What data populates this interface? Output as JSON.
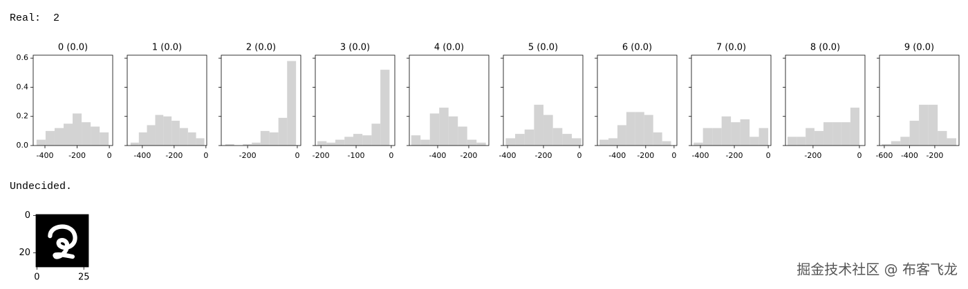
{
  "header": "Real:  2",
  "status": "Undecided.",
  "watermark": "掘金技术社区 @ 布客飞龙",
  "chart_data": [
    {
      "type": "histogram",
      "title": "0 (0.0)",
      "color": "#d3d3d3",
      "xlim": [
        -473,
        21
      ],
      "xticks": [
        -400,
        -200,
        0
      ],
      "ylim": [
        0,
        0.62
      ],
      "yticks": [
        {
          "value": 0,
          "label": "0.0"
        },
        0.2,
        0.4,
        0.6
      ],
      "bins": [
        -452,
        -396,
        -340,
        -284,
        -228,
        -172,
        -116,
        -60,
        -4
      ],
      "counts": [
        0.04,
        0.1,
        0.12,
        0.15,
        0.22,
        0.16,
        0.13,
        0.09
      ]
    },
    {
      "type": "histogram",
      "title": "1 (0.0)",
      "color": "#d3d3d3",
      "xlim": [
        -495,
        5
      ],
      "xticks": [
        -400,
        -200,
        0
      ],
      "ylim": [
        0,
        0.62
      ],
      "bins": [
        -474,
        -422,
        -371,
        -319,
        -268,
        -216,
        -165,
        -113,
        -62,
        -10
      ],
      "counts": [
        0.02,
        0.09,
        0.14,
        0.21,
        0.2,
        0.17,
        0.12,
        0.09,
        0.05
      ]
    },
    {
      "type": "histogram",
      "title": "2 (0.0)",
      "color": "#d3d3d3",
      "xlim": [
        -306,
        14
      ],
      "xticks": [
        -200,
        0
      ],
      "ylim": [
        0,
        0.62
      ],
      "bins": [
        -290,
        -254,
        -219,
        -183,
        -148,
        -112,
        -76,
        -41,
        -5
      ],
      "counts": [
        0.01,
        0,
        0.01,
        0.02,
        0.1,
        0.09,
        0.19,
        0.58
      ]
    },
    {
      "type": "histogram",
      "title": "3 (0.0)",
      "color": "#d3d3d3",
      "xlim": [
        -216,
        10
      ],
      "xticks": [
        -200,
        -100,
        0
      ],
      "ylim": [
        0,
        0.62
      ],
      "bins": [
        -210,
        -184,
        -159,
        -133,
        -108,
        -82,
        -56,
        -31,
        -5
      ],
      "counts": [
        0.03,
        0.02,
        0.04,
        0.06,
        0.08,
        0.07,
        0.15,
        0.52
      ]
    },
    {
      "type": "histogram",
      "title": "4 (0.0)",
      "color": "#d3d3d3",
      "xlim": [
        -582,
        -71
      ],
      "xticks": [
        -400,
        -200
      ],
      "ylim": [
        0,
        0.62
      ],
      "bins": [
        -570,
        -510,
        -450,
        -390,
        -330,
        -270,
        -210,
        -150,
        -90
      ],
      "counts": [
        0.07,
        0.04,
        0.22,
        0.26,
        0.2,
        0.13,
        0.04,
        0.02
      ]
    },
    {
      "type": "histogram",
      "title": "5 (0.0)",
      "color": "#d3d3d3",
      "xlim": [
        -423,
        19
      ],
      "xticks": [
        -400,
        -200,
        0
      ],
      "ylim": [
        0,
        0.62
      ],
      "bins": [
        -410,
        -357.5,
        -305,
        -252.5,
        -200,
        -147.5,
        -95,
        -42.5,
        10
      ],
      "counts": [
        0.05,
        0.08,
        0.11,
        0.28,
        0.21,
        0.12,
        0.08,
        0.05
      ]
    },
    {
      "type": "histogram",
      "title": "6 (0.0)",
      "color": "#d3d3d3",
      "xlim": [
        -540,
        20
      ],
      "xticks": [
        -400,
        -200,
        0
      ],
      "ylim": [
        0,
        0.62
      ],
      "bins": [
        -525,
        -462,
        -399,
        -336,
        -273,
        -210,
        -147,
        -84,
        -21
      ],
      "counts": [
        0.04,
        0.05,
        0.14,
        0.23,
        0.23,
        0.21,
        0.09,
        0.03
      ]
    },
    {
      "type": "histogram",
      "title": "7 (0.0)",
      "color": "#d3d3d3",
      "xlim": [
        -453,
        16
      ],
      "xticks": [
        -400,
        -200,
        0
      ],
      "ylim": [
        0,
        0.62
      ],
      "bins": [
        -440,
        -385,
        -330,
        -275,
        -220,
        -165,
        -110,
        -55,
        0
      ],
      "counts": [
        0.02,
        0.12,
        0.12,
        0.2,
        0.16,
        0.18,
        0.06,
        0.12
      ]
    },
    {
      "type": "histogram",
      "title": "8 (0.0)",
      "color": "#d3d3d3",
      "xlim": [
        -319,
        24
      ],
      "xticks": [
        -200,
        0
      ],
      "ylim": [
        0,
        0.62
      ],
      "bins": [
        -310,
        -271,
        -232,
        -194,
        -155,
        -116,
        -78,
        -39,
        0
      ],
      "counts": [
        0.06,
        0.06,
        0.12,
        0.1,
        0.16,
        0.16,
        0.16,
        0.26
      ]
    },
    {
      "type": "histogram",
      "title": "9 (0.0)",
      "color": "#d3d3d3",
      "xlim": [
        -638,
        -8
      ],
      "xticks": [
        -600,
        -400,
        -200
      ],
      "ylim": [
        0,
        0.62
      ],
      "bins": [
        -620,
        -546,
        -472,
        -399,
        -325,
        -251,
        -177,
        -104,
        -30
      ],
      "counts": [
        0.01,
        0.03,
        0.06,
        0.17,
        0.28,
        0.28,
        0.1,
        0.05
      ]
    },
    {
      "type": "image",
      "xlim": [
        -0.5,
        27.5
      ],
      "xticks": [
        0,
        25
      ],
      "ylim": [
        27.5,
        -0.5
      ],
      "yticks": [
        0,
        20
      ]
    }
  ]
}
